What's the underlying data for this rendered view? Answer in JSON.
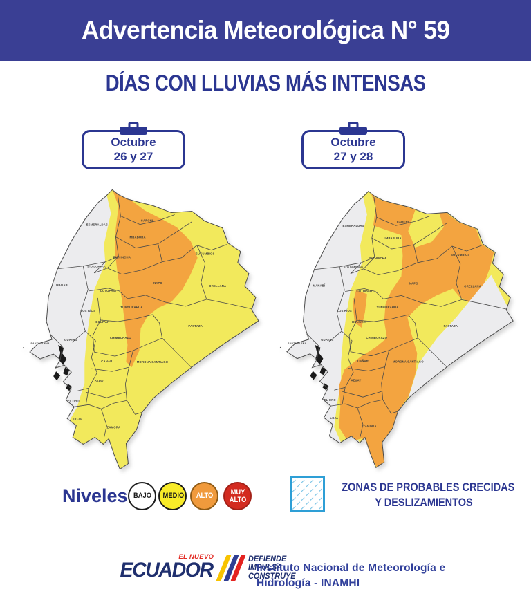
{
  "header": {
    "title": "Advertencia Meteorológica N° 59",
    "bg_color": "#3A3F94"
  },
  "subtitle": "DÍAS CON LLUVIAS MÁS INTENSAS",
  "cards": [
    {
      "month": "Octubre",
      "days": "26 y 27"
    },
    {
      "month": "Octubre",
      "days": "27 y 28"
    }
  ],
  "map_colors": {
    "bajo": "#ECECEE",
    "medio": "#F2E95C",
    "alto": "#F3A440",
    "border": "#4A4A4A",
    "label": "#3B3B3B"
  },
  "maps": [
    {
      "title": "Octubre 26 y 27",
      "provinces": [
        {
          "name": "ESMERALDAS",
          "level": "bajo"
        },
        {
          "name": "CARCHI",
          "level": "alto"
        },
        {
          "name": "IMBABURA",
          "level": "alto"
        },
        {
          "name": "PICHINCHA",
          "level": "alto"
        },
        {
          "name": "STO DOMINGO",
          "level": "bajo"
        },
        {
          "name": "MANABÍ",
          "level": "bajo"
        },
        {
          "name": "SUCUMBÍOS",
          "level": "medio"
        },
        {
          "name": "NAPO",
          "level": "alto"
        },
        {
          "name": "ORELLANA",
          "level": "medio"
        },
        {
          "name": "COTOPAXI",
          "level": "medio"
        },
        {
          "name": "LOS RÍOS",
          "level": "medio"
        },
        {
          "name": "TUNGURAHUA",
          "level": "alto"
        },
        {
          "name": "BOLÍVAR",
          "level": "medio"
        },
        {
          "name": "CHIMBORAZO",
          "level": "medio"
        },
        {
          "name": "PASTAZA",
          "level": "medio"
        },
        {
          "name": "MORONA SANTIAGO",
          "level": "medio"
        },
        {
          "name": "SANTA ELENA",
          "level": "bajo"
        },
        {
          "name": "GUAYAS",
          "level": "bajo"
        },
        {
          "name": "CAÑAR",
          "level": "medio"
        },
        {
          "name": "AZUAY",
          "level": "medio"
        },
        {
          "name": "EL ORO",
          "level": "bajo"
        },
        {
          "name": "LOJA",
          "level": "medio"
        },
        {
          "name": "ZAMORA",
          "level": "medio"
        }
      ]
    },
    {
      "title": "Octubre 27 y 28",
      "provinces": [
        {
          "name": "ESMERALDAS",
          "level": "bajo"
        },
        {
          "name": "CARCHI",
          "level": "alto"
        },
        {
          "name": "IMBABURA",
          "level": "alto"
        },
        {
          "name": "PICHINCHA",
          "level": "medio"
        },
        {
          "name": "STO DOMINGO",
          "level": "bajo"
        },
        {
          "name": "MANABÍ",
          "level": "bajo"
        },
        {
          "name": "SUCUMBÍOS",
          "level": "alto"
        },
        {
          "name": "NAPO",
          "level": "alto"
        },
        {
          "name": "ORELLANA",
          "level": "alto"
        },
        {
          "name": "COTOPAXI",
          "level": "medio"
        },
        {
          "name": "LOS RÍOS",
          "level": "bajo"
        },
        {
          "name": "TUNGURAHUA",
          "level": "medio"
        },
        {
          "name": "BOLÍVAR",
          "level": "medio"
        },
        {
          "name": "CHIMBORAZO",
          "level": "medio"
        },
        {
          "name": "PASTAZA",
          "level": "medio"
        },
        {
          "name": "MORONA SANTIAGO",
          "level": "alto"
        },
        {
          "name": "SANTA ELENA",
          "level": "bajo"
        },
        {
          "name": "GUAYAS",
          "level": "bajo"
        },
        {
          "name": "CAÑAR",
          "level": "medio"
        },
        {
          "name": "AZUAY",
          "level": "alto"
        },
        {
          "name": "EL ORO",
          "level": "bajo"
        },
        {
          "name": "LOJA",
          "level": "bajo"
        },
        {
          "name": "ZAMORA",
          "level": "alto"
        }
      ]
    }
  ],
  "levels_legend": {
    "label": "Niveles",
    "items": [
      {
        "label": "BAJO",
        "fill": "#FFFFFF",
        "text_color": "#1A1A1A",
        "border": "#1A1A1A"
      },
      {
        "label": "MEDIO",
        "fill": "#F8EB29",
        "text_color": "#1A1A1A",
        "border": "#1A1A1A"
      },
      {
        "label": "ALTO",
        "fill": "#F09A3C",
        "text_color": "#FFFFFF",
        "border": "#8F5B16"
      },
      {
        "label": "MUY ALTO",
        "fill": "#D32B20",
        "text_color": "#FFFFFF",
        "border": "#A32118"
      }
    ]
  },
  "zones_legend": {
    "line1": "ZONAS DE PROBABLES CRECIDAS",
    "line2": "Y DESLIZAMIENTOS",
    "box_color": "#2E9FD6",
    "hatch_color": "#79C3E6"
  },
  "footer": {
    "el_nuevo": "EL NUEVO",
    "ecuador": "ECUADOR",
    "slogan": [
      "DEFIENDE",
      "IMPULSA",
      "CONSTRUYE"
    ],
    "stripe_colors": [
      "#F8C300",
      "#2F3E93",
      "#E42320"
    ],
    "institute_line1": "Instituto Nacional de Meteorología e",
    "institute_line2": "Hidrología - INAMHI"
  }
}
